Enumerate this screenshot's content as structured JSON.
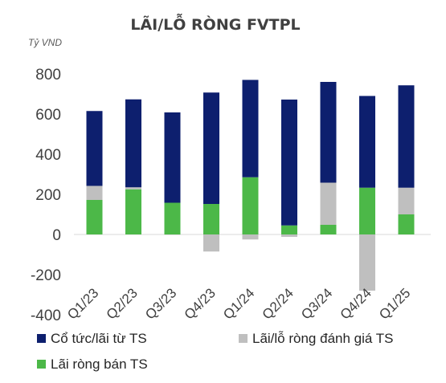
{
  "chart_data": {
    "type": "bar",
    "stacked": true,
    "title": "LÃI/LỖ RÒNG FVTPL",
    "unit_label": "Tỷ VND",
    "categories": [
      "Q1/23",
      "Q2/23",
      "Q3/23",
      "Q4/23",
      "Q1/24",
      "Q2/24",
      "Q3/24",
      "Q4/24",
      "Q1/25"
    ],
    "series": [
      {
        "name": "Lãi ròng bán TS",
        "color": "#4cb848",
        "values": [
          172,
          225,
          158,
          152,
          285,
          45,
          48,
          233,
          100
        ]
      },
      {
        "name": "Lãi/lỗ ròng đánh giá TS",
        "color": "#bfbfbf",
        "values": [
          70,
          10,
          -2,
          -85,
          -25,
          -12,
          210,
          -280,
          133
        ]
      },
      {
        "name": "Cổ tức/lãi từ TS",
        "color": "#0d1f6e",
        "values": [
          373,
          438,
          450,
          555,
          485,
          627,
          502,
          457,
          510
        ]
      }
    ],
    "yticks": [
      800,
      600,
      400,
      200,
      0,
      -200,
      -400
    ],
    "ylim": [
      -400,
      800
    ],
    "grid": false,
    "legend_position": "bottom"
  }
}
